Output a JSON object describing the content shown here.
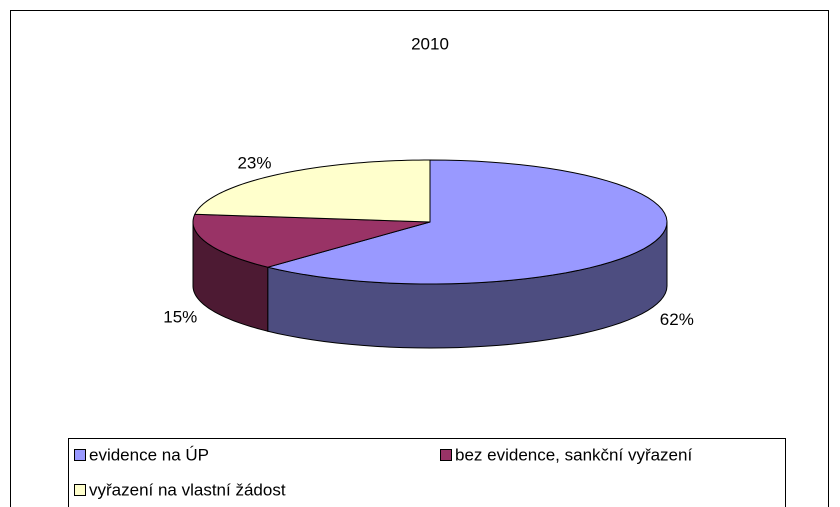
{
  "chart_data": {
    "type": "pie",
    "title": "2010",
    "categories": [
      "evidence na ÚP",
      "bez evidence, sankční vyřazení",
      "vyřazení na vlastní žádost"
    ],
    "values": [
      62,
      15,
      23
    ],
    "value_labels": [
      "62%",
      "15%",
      "23%"
    ],
    "colors": [
      "#9999ff",
      "#993366",
      "#ffffcc"
    ],
    "side_colors": [
      "#4d4d80",
      "#4d1a33",
      "#808066"
    ],
    "legend": "bottom"
  }
}
